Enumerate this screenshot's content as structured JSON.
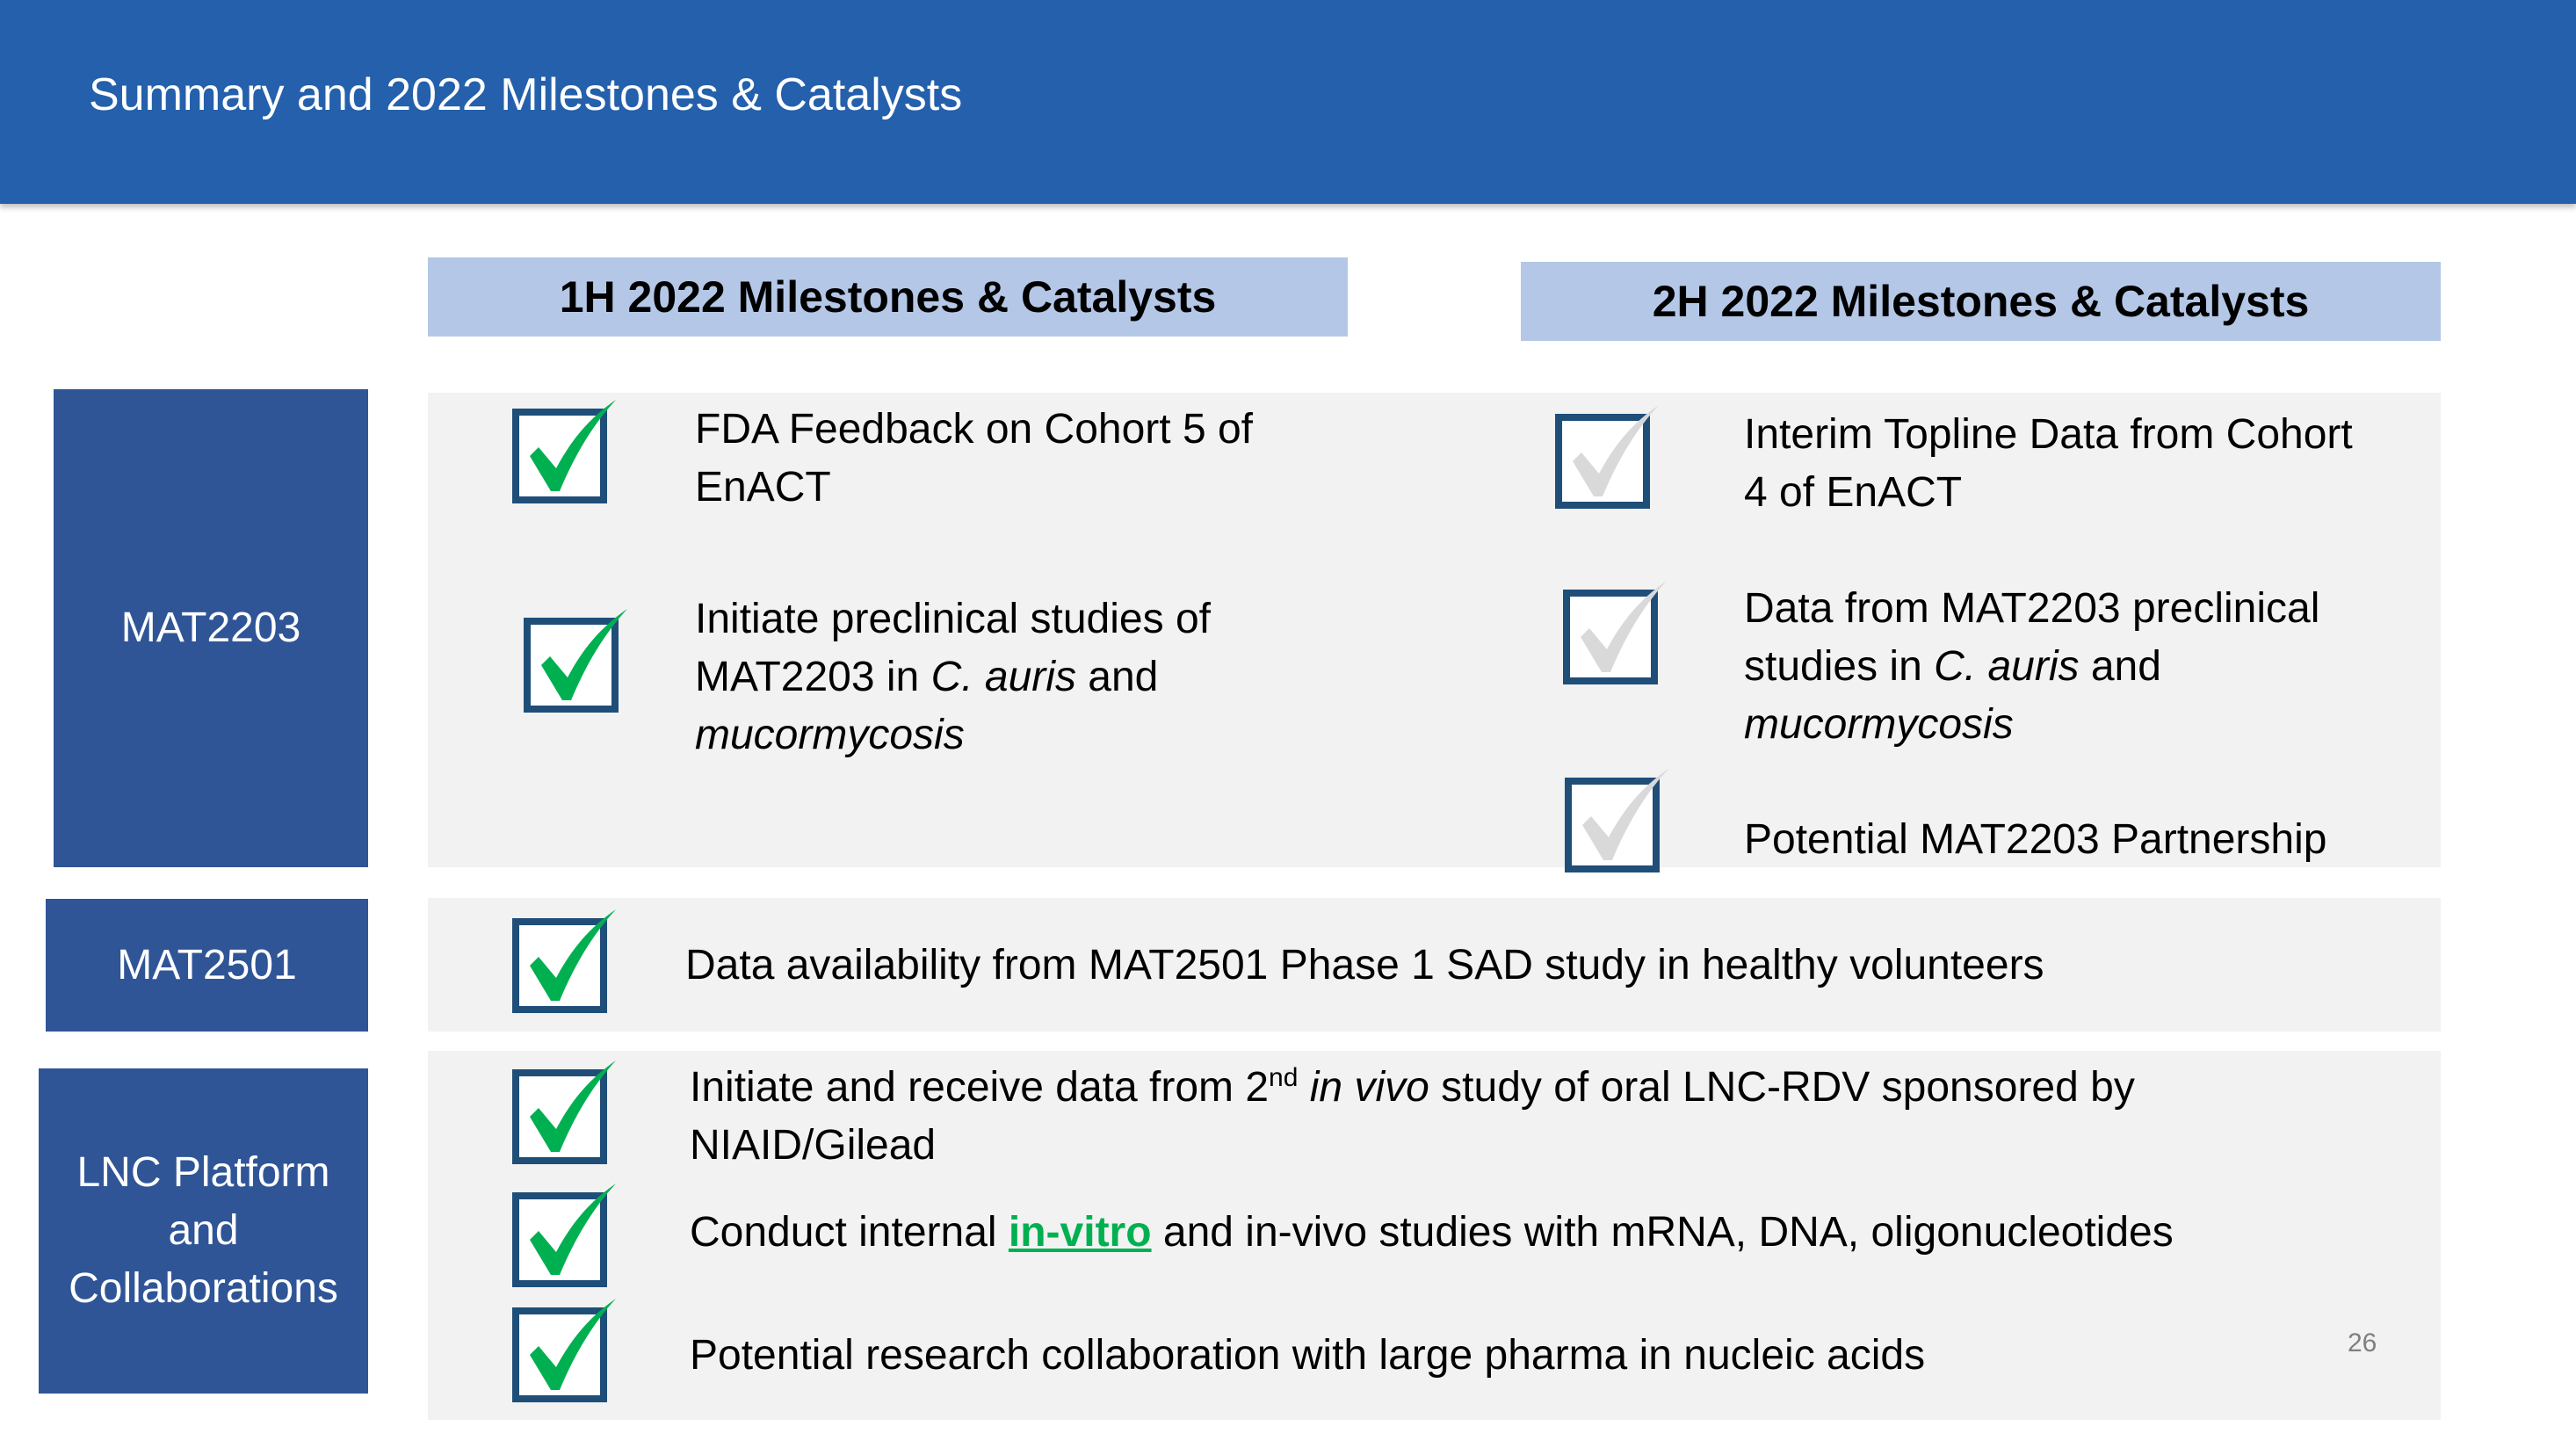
{
  "header": {
    "title": "Summary and 2022 Milestones & Catalysts",
    "bar_color": "#2460AB"
  },
  "columns": {
    "first_half": "1H 2022 Milestones & Catalysts",
    "second_half": "2H 2022 Milestones & Catalysts"
  },
  "rows": {
    "mat2203": {
      "label": "MAT2203",
      "first_half": [
        {
          "line1": "FDA Feedback on Cohort 5 of",
          "line2": "EnACT",
          "checked": true
        },
        {
          "line1": "Initiate preclinical studies of",
          "line2_pre": "MAT2203 in ",
          "line2_italic": "C. auris",
          "line2_post": " and",
          "line3_italic": "mucormycosis",
          "checked": true
        }
      ],
      "second_half": [
        {
          "line1": "Interim Topline Data from Cohort",
          "line2": "4 of EnACT",
          "checked": false
        },
        {
          "line1": "Data from MAT2203 preclinical",
          "line2_pre": "studies in ",
          "line2_italic": "C. auris",
          "line2_post": " and",
          "line3_italic": "mucormycosis",
          "checked": false
        },
        {
          "line1": "Potential MAT2203 Partnership",
          "checked": false
        }
      ]
    },
    "mat2501": {
      "label": "MAT2501",
      "items": [
        {
          "text": "Data availability from MAT2501 Phase 1 SAD study in healthy volunteers",
          "checked": true
        }
      ]
    },
    "lnc": {
      "label_line1": "LNC Platform",
      "label_line2": "and",
      "label_line3": "Collaborations",
      "items": [
        {
          "pre": "Initiate and receive data from 2",
          "sup": "nd",
          "mid": " ",
          "italic": "in vivo",
          "post": " study of oral LNC-RDV sponsored by",
          "line2": "NIAID/Gilead",
          "checked": true
        },
        {
          "pre": "Conduct internal ",
          "link": "in-vitro",
          "post": " and in-vivo studies with mRNA, DNA, oligonucleotides",
          "checked": true
        },
        {
          "text": "Potential research collaboration with large pharma in nucleic acids",
          "checked": true
        }
      ]
    }
  },
  "slide_number": "26",
  "colors": {
    "label_bg": "#2F5597",
    "column_header_bg": "#B4C7E7",
    "panel_bg": "#F2F2F2",
    "checkbox_border": "#1F4E79",
    "check_done": "#00B050",
    "check_pending": "#D9D9D9",
    "link": "#00B050"
  },
  "icons": {
    "done": "green-checkmark-icon",
    "pending": "grey-checkmark-icon"
  }
}
